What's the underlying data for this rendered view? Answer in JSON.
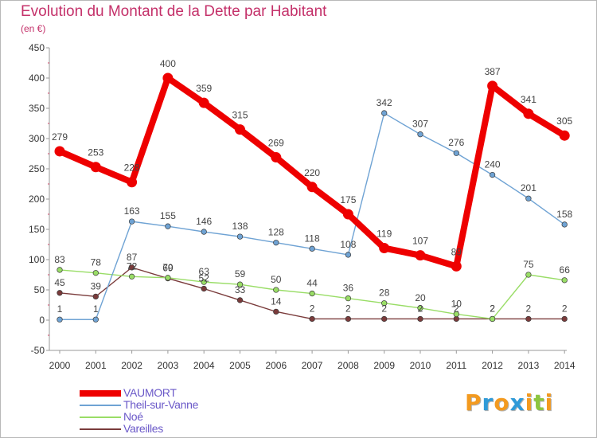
{
  "title": "Evolution du Montant de la Dette par Habitant",
  "subtitle": "(en €)",
  "logo": {
    "letters": [
      "P",
      "r",
      "o",
      "x",
      "i",
      "t",
      "i"
    ],
    "colors": [
      "#f39a1f",
      "#2f9ad8",
      "#f39a1f",
      "#2f9ad8",
      "#f39a1f",
      "#8cc63f",
      "#f39a1f"
    ]
  },
  "chart_data": {
    "type": "line",
    "x": [
      "2000",
      "2001",
      "2002",
      "2003",
      "2004",
      "2005",
      "2006",
      "2007",
      "2008",
      "2009",
      "2010",
      "2011",
      "2012",
      "2013",
      "2014"
    ],
    "ylim": [
      -50,
      450
    ],
    "yticks": [
      -50,
      0,
      50,
      100,
      150,
      200,
      250,
      300,
      350,
      400,
      450
    ],
    "grid": false,
    "legend": "bottom-left",
    "series": [
      {
        "name": "VAUMORT",
        "color": "#ee0000",
        "values": [
          279,
          253,
          228,
          400,
          359,
          315,
          269,
          220,
          175,
          119,
          107,
          89,
          387,
          341,
          305
        ]
      },
      {
        "name": "Theil-sur-Vanne",
        "color": "#6fa3d4",
        "values": [
          1,
          1,
          163,
          155,
          146,
          138,
          128,
          118,
          108,
          342,
          307,
          276,
          240,
          201,
          158
        ]
      },
      {
        "name": "Noé",
        "color": "#99dd66",
        "values": [
          83,
          78,
          72,
          70,
          63,
          59,
          50,
          44,
          36,
          28,
          20,
          10,
          2,
          75,
          66
        ]
      },
      {
        "name": "Vareilles",
        "color": "#7a3b3b",
        "values": [
          45,
          39,
          87,
          69,
          52,
          33,
          14,
          2,
          2,
          2,
          2,
          2,
          2,
          2,
          2
        ]
      }
    ]
  }
}
